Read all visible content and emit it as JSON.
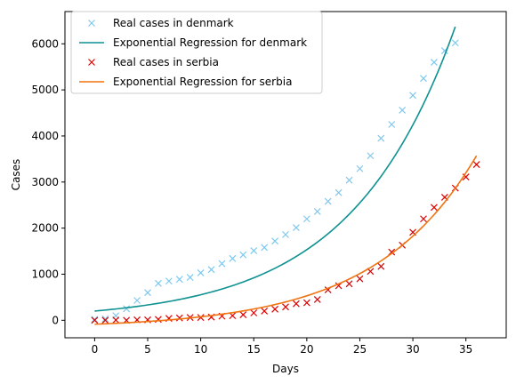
{
  "chart_data": {
    "type": "line",
    "title": "",
    "xlabel": "Days",
    "ylabel": "Cases",
    "xlim": [
      -2.8,
      38.8
    ],
    "ylim": [
      -380,
      6700
    ],
    "xticks": [
      0,
      5,
      10,
      15,
      20,
      25,
      30,
      35
    ],
    "yticks": [
      0,
      1000,
      2000,
      3000,
      4000,
      5000,
      6000
    ],
    "grid": false,
    "legend_position": "upper-left",
    "colors": {
      "denmark_points": "#7ec8ee",
      "denmark_curve": "#0e9191",
      "serbia_points": "#dd0000",
      "serbia_curve": "#ef7411"
    },
    "series": [
      {
        "name": "Real cases in denmark",
        "kind": "points",
        "marker": "x",
        "color_key": "denmark_points",
        "x": [
          0,
          1,
          2,
          3,
          4,
          5,
          6,
          7,
          8,
          9,
          10,
          11,
          12,
          13,
          14,
          15,
          16,
          17,
          18,
          19,
          20,
          21,
          22,
          23,
          24,
          25,
          26,
          27,
          28,
          29,
          30,
          31,
          32,
          33,
          34
        ],
        "y": [
          20,
          30,
          100,
          250,
          430,
          600,
          800,
          850,
          890,
          930,
          1030,
          1100,
          1230,
          1340,
          1420,
          1510,
          1580,
          1720,
          1860,
          2010,
          2200,
          2360,
          2580,
          2770,
          3040,
          3290,
          3570,
          3950,
          4250,
          4560,
          4880,
          5250,
          5600,
          5850,
          6020
        ]
      },
      {
        "name": "Exponential Regression for denmark",
        "kind": "curve",
        "color_key": "denmark_curve",
        "x_range": [
          0,
          34
        ],
        "model": {
          "a": 200,
          "b": 0.1018,
          "c": 0
        }
      },
      {
        "name": "Real cases in serbia",
        "kind": "points",
        "marker": "x",
        "color_key": "serbia_points",
        "x": [
          0,
          1,
          2,
          3,
          4,
          5,
          6,
          7,
          8,
          9,
          10,
          11,
          12,
          13,
          14,
          15,
          16,
          17,
          18,
          19,
          20,
          21,
          22,
          23,
          24,
          25,
          26,
          27,
          28,
          29,
          30,
          31,
          32,
          33,
          34,
          35,
          36
        ],
        "y": [
          0,
          0,
          5,
          0,
          10,
          10,
          20,
          40,
          50,
          60,
          60,
          70,
          90,
          100,
          120,
          160,
          200,
          240,
          290,
          360,
          380,
          450,
          660,
          750,
          790,
          900,
          1060,
          1170,
          1480,
          1630,
          1910,
          2200,
          2450,
          2670,
          2870,
          3110,
          3380
        ]
      },
      {
        "name": "Exponential Regression for serbia",
        "kind": "curve",
        "color_key": "serbia_curve",
        "x_range": [
          0,
          36
        ],
        "model": {
          "a": 87,
          "b": 0.1045,
          "c": -173
        }
      }
    ]
  }
}
